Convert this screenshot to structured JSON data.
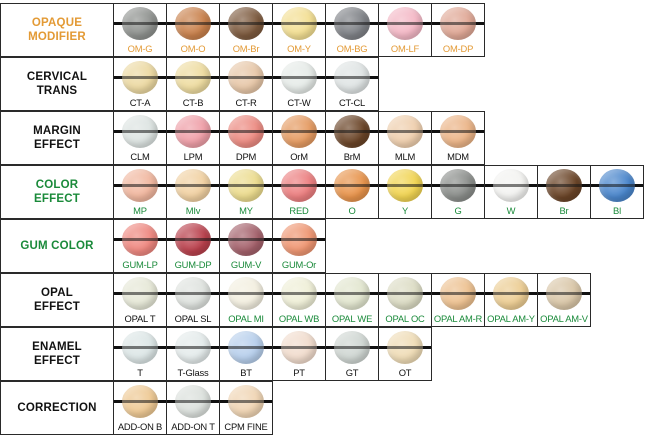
{
  "colors": {
    "label_orange": "#e39a35",
    "label_green": "#1a8a3a",
    "label_black": "#111111",
    "code_orange": "#e39a35",
    "code_green": "#1a8a3a",
    "code_black": "#111111"
  },
  "rows": [
    {
      "label": "OPAQUE\nMODIFIER",
      "label_color": "orange",
      "code_color": "orange",
      "swatches": [
        {
          "code": "OM-G",
          "color": "#8f928f"
        },
        {
          "code": "OM-O",
          "color": "#c9814c"
        },
        {
          "code": "OM-Br",
          "color": "#7d5a3e"
        },
        {
          "code": "OM-Y",
          "color": "#f3df93"
        },
        {
          "code": "OM-BG",
          "color": "#7f8287"
        },
        {
          "code": "OM-LF",
          "color": "#f4b8c6"
        },
        {
          "code": "OM-DP",
          "color": "#e0a896"
        }
      ]
    },
    {
      "label": "CERVICAL\nTRANS",
      "label_color": "black",
      "code_color": "black",
      "swatches": [
        {
          "code": "CT-A",
          "color": "#ecd9a2"
        },
        {
          "code": "CT-B",
          "color": "#eedca0"
        },
        {
          "code": "CT-R",
          "color": "#e7c7a8"
        },
        {
          "code": "CT-W",
          "color": "#e6ebe8"
        },
        {
          "code": "CT-CL",
          "color": "#dfe4e4"
        }
      ]
    },
    {
      "label": "MARGIN\nEFFECT",
      "label_color": "black",
      "code_color": "black",
      "swatches": [
        {
          "code": "CLM",
          "color": "#dde4e2"
        },
        {
          "code": "LPM",
          "color": "#ef9fa8"
        },
        {
          "code": "DPM",
          "color": "#ec8b82"
        },
        {
          "code": "OrM",
          "color": "#e59b62"
        },
        {
          "code": "BrM",
          "color": "#6a4427"
        },
        {
          "code": "MLM",
          "color": "#efcfae"
        },
        {
          "code": "MDM",
          "color": "#ebb487"
        }
      ]
    },
    {
      "label": "COLOR\nEFFECT",
      "label_color": "green",
      "code_color": "green",
      "swatches": [
        {
          "code": "MP",
          "color": "#f1b79f"
        },
        {
          "code": "MIv",
          "color": "#f1d1a2"
        },
        {
          "code": "MY",
          "color": "#ecdc8e"
        },
        {
          "code": "RED",
          "color": "#ec7f80"
        },
        {
          "code": "O",
          "color": "#e8944c"
        },
        {
          "code": "Y",
          "color": "#f1d452"
        },
        {
          "code": "G",
          "color": "#8b8e8b"
        },
        {
          "code": "W",
          "color": "#f3f3f1"
        },
        {
          "code": "Br",
          "color": "#6a4427"
        },
        {
          "code": "Bl",
          "color": "#4a86cc"
        }
      ]
    },
    {
      "label": "GUM COLOR",
      "label_color": "green",
      "code_color": "green",
      "swatches": [
        {
          "code": "GUM-LP",
          "color": "#ee877f"
        },
        {
          "code": "GUM-DP",
          "color": "#b9404c"
        },
        {
          "code": "GUM-V",
          "color": "#a4616b"
        },
        {
          "code": "GUM-Or",
          "color": "#ef9672"
        }
      ]
    },
    {
      "label": "OPAL\nEFFECT",
      "label_color": "black",
      "code_color": "mixed",
      "swatches": [
        {
          "code": "OPAL T",
          "color": "#e6e8d7",
          "code_color": "black"
        },
        {
          "code": "OPAL SL",
          "color": "#dfe3df",
          "code_color": "black"
        },
        {
          "code": "OPAL MI",
          "color": "#f3efe0",
          "code_color": "green"
        },
        {
          "code": "OPAL WB",
          "color": "#efefd7",
          "code_color": "green"
        },
        {
          "code": "OPAL WE",
          "color": "#e2e6cf",
          "code_color": "green"
        },
        {
          "code": "OPAL OC",
          "color": "#dcdcc4",
          "code_color": "green"
        },
        {
          "code": "OPAL AM-R",
          "color": "#edc190",
          "code_color": "green"
        },
        {
          "code": "OPAL AM-Y",
          "color": "#eccd93",
          "code_color": "green"
        },
        {
          "code": "OPAL AM-V",
          "color": "#d9c6a7",
          "code_color": "green"
        }
      ]
    },
    {
      "label": "ENAMEL\nEFFECT",
      "label_color": "black",
      "code_color": "black",
      "swatches": [
        {
          "code": "T",
          "color": "#dce6e6"
        },
        {
          "code": "T-Glass",
          "color": "#e4ebeb"
        },
        {
          "code": "BT",
          "color": "#b7cfec"
        },
        {
          "code": "PT",
          "color": "#f1dccd"
        },
        {
          "code": "GT",
          "color": "#cfd6d2"
        },
        {
          "code": "OT",
          "color": "#efdcb6"
        }
      ]
    },
    {
      "label": "CORRECTION",
      "label_color": "black",
      "code_color": "black",
      "swatches": [
        {
          "code": "ADD-ON B",
          "color": "#eec994"
        },
        {
          "code": "ADD-ON T",
          "color": "#dce1dd"
        },
        {
          "code": "CPM FINE",
          "color": "#f0d5b4"
        }
      ]
    }
  ]
}
